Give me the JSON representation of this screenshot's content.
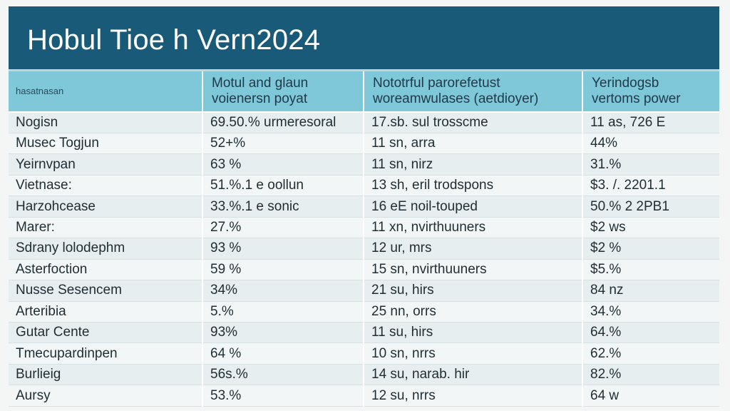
{
  "title": "Hobul Tioe h Vern2024",
  "colors": {
    "banner": "#185a78",
    "header": "#7ec8d9",
    "row_odd": "#e6eef0",
    "row_even": "#f3f6f6"
  },
  "table": {
    "headers": [
      [
        "hasatnasan"
      ],
      [
        "Motul and glaun",
        "voienersn poyat"
      ],
      [
        "Nototrful parorefetust",
        "woreamwulases (aetdioyer)"
      ],
      [
        "Yerindogsb",
        "vertoms power"
      ]
    ],
    "rows": [
      [
        "Nogisn",
        "69.50.% urmeresoral",
        "17.sb. sul trosscme",
        "11 as, 726 E"
      ],
      [
        "Musec Togjun",
        "52+%",
        "11 sn, arra",
        "44%"
      ],
      [
        "Yeirnvpan",
        "63 %",
        "11 sn, nirz",
        "31.%"
      ],
      [
        "Vietnase:",
        "51.%.1 e oollun",
        "13 sh, eril trodspons",
        "$3. /. 2201.1"
      ],
      [
        "Harzohcease",
        "33.%.1 e sonic",
        "16 eE noil-touped",
        "50.% 2 2PB1"
      ],
      [
        "Marer:",
        "27.%",
        "11 xn, nvirthuuners",
        "$2 ws"
      ],
      [
        "Sdrany lolodephm",
        "93 %",
        "12 ur, mrs",
        "$2 %"
      ],
      [
        "Asterfoction",
        "59 %",
        "15 sn, nvirthuuners",
        "$5.%"
      ],
      [
        "Nusse Sesencem",
        "34%",
        "21 su, hirs",
        "84 nz"
      ],
      [
        "Arteribia",
        "5.%",
        "25 nn, orrs",
        "34.%"
      ],
      [
        "Gutar Cente",
        "93%",
        "11 su, hirs",
        "64.%"
      ],
      [
        "Tmecupardinpen",
        "64 %",
        "10 sn, nrrs",
        "62.%"
      ],
      [
        "Burlieig",
        "56s.%",
        "14 su, narab. hir",
        "82.%"
      ],
      [
        "Aursy",
        "53.%",
        "12 su, nrrs",
        "64 w"
      ]
    ]
  }
}
